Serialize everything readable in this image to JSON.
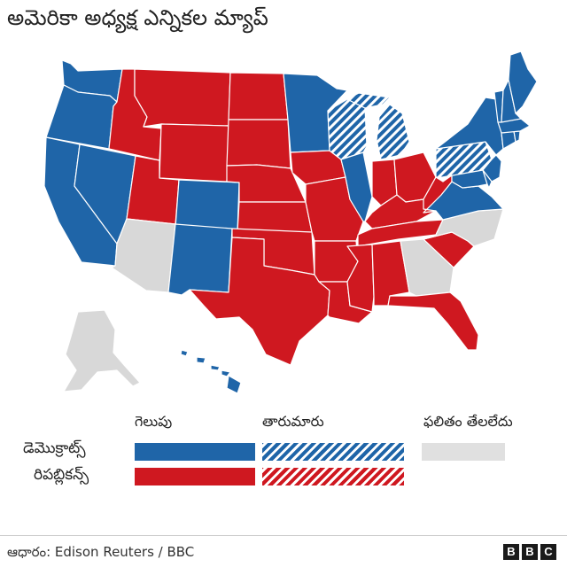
{
  "title": "అమెరికా అధ్యక్ష ఎన్నికల మ్యాప్",
  "colors": {
    "democrat": "#1f65a8",
    "republican": "#cf1820",
    "undecided": "#d8d8d8",
    "border": "#ffffff"
  },
  "legend": {
    "col_win": "గెలుపు",
    "col_lean": "తారుమారు",
    "col_unknown": "ఫలితం తేలలేదు",
    "row_dem": "డెమొక్రాట్స్",
    "row_rep": "రిపబ్లికన్స్"
  },
  "source": "ఆధారం: Edison Reuters / BBC",
  "logo": [
    "B",
    "B",
    "C"
  ],
  "states": {
    "WA": "democrat",
    "OR": "democrat",
    "CA": "democrat",
    "NV": "democrat",
    "ID": "republican",
    "MT": "republican",
    "WY": "republican",
    "UT": "republican",
    "AZ": "undecided",
    "CO": "democrat",
    "NM": "democrat",
    "ND": "republican",
    "SD": "republican",
    "NE": "republican",
    "KS": "republican",
    "OK": "republican",
    "TX": "republican",
    "MN": "democrat",
    "IA": "republican",
    "MO": "republican",
    "AR": "republican",
    "LA": "republican",
    "WI": "democrat-lean",
    "IL": "democrat",
    "MI": "democrat-lean",
    "IN": "republican",
    "OH": "republican",
    "KY": "republican",
    "TN": "republican",
    "MS": "republican",
    "AL": "republican",
    "GA": "undecided",
    "FL": "republican",
    "SC": "republican",
    "NC": "undecided",
    "VA": "democrat",
    "WV": "republican",
    "PA": "democrat-lean",
    "NY": "democrat",
    "NJ": "democrat",
    "DE": "democrat",
    "MD": "democrat",
    "CT": "democrat",
    "RI": "democrat",
    "MA": "democrat",
    "VT": "democrat",
    "NH": "democrat",
    "ME": "democrat",
    "AK": "undecided",
    "HI": "democrat"
  }
}
